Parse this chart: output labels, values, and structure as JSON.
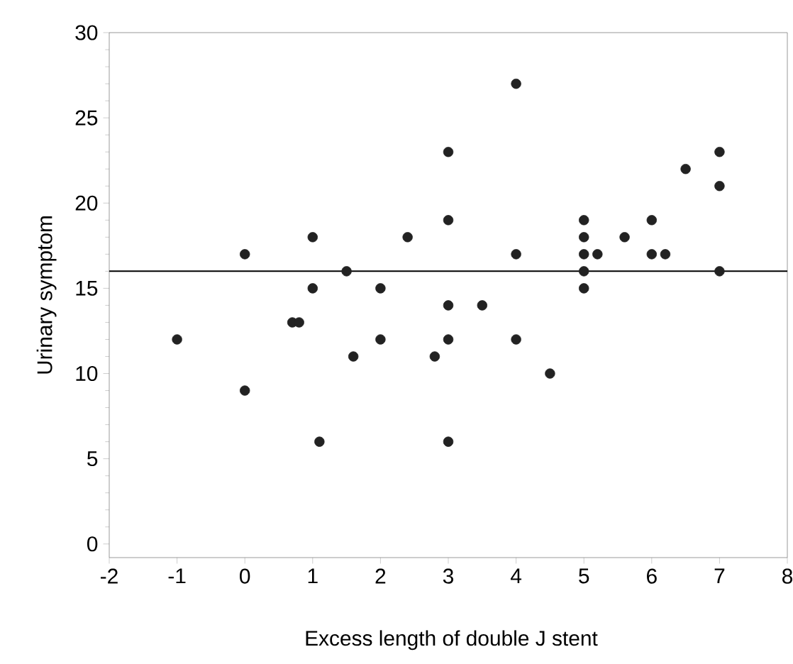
{
  "chart_data": {
    "type": "scatter",
    "xlabel": "Excess length of double J stent",
    "ylabel": "Urinary symptom",
    "x": [
      -1,
      0,
      0,
      0.7,
      0.8,
      1,
      1,
      1.1,
      1.5,
      1.6,
      2,
      2,
      2.4,
      2.8,
      3,
      3,
      3,
      3,
      3,
      3.5,
      4,
      4,
      4,
      4.5,
      5,
      5,
      5,
      5,
      5,
      5.2,
      5.6,
      6,
      6,
      6.2,
      6.5,
      7,
      7,
      7
    ],
    "values": [
      12,
      17,
      9,
      13,
      13,
      18,
      15,
      6,
      16,
      11,
      15,
      12,
      18,
      11,
      23,
      19,
      14,
      12,
      6,
      14,
      27,
      17,
      12,
      10,
      19,
      18,
      17,
      16,
      15,
      17,
      18,
      19,
      17,
      17,
      22,
      23,
      21,
      16
    ],
    "color": "#222222",
    "marker": "circle",
    "xlim": [
      -2,
      8
    ],
    "ylim": [
      -0.8,
      30
    ],
    "xticks": [
      -2,
      -1,
      0,
      1,
      2,
      3,
      4,
      5,
      6,
      7,
      8
    ],
    "yticks": [
      0,
      5,
      10,
      15,
      20,
      25,
      30
    ],
    "ref_lines": [
      {
        "axis": "y",
        "value": 16,
        "color": "#000000"
      }
    ],
    "grid": false,
    "legend": false
  }
}
